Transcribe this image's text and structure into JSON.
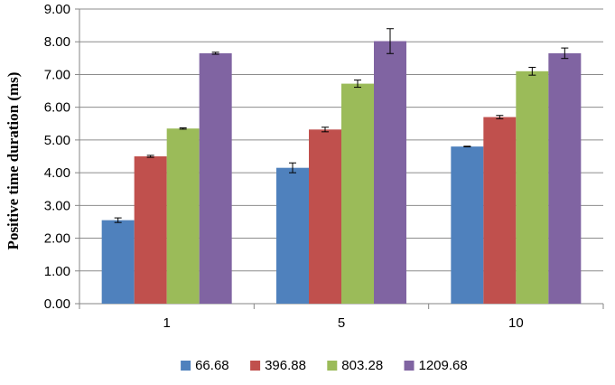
{
  "chart_data": {
    "type": "bar",
    "title": "",
    "xlabel": "",
    "ylabel": "Positive time duration (ms)",
    "ylim": [
      0,
      9
    ],
    "yticks": [
      "0.00",
      "1.00",
      "2.00",
      "3.00",
      "4.00",
      "5.00",
      "6.00",
      "7.00",
      "8.00",
      "9.00"
    ],
    "categories": [
      "1",
      "5",
      "10"
    ],
    "grid": true,
    "legend_position": "bottom",
    "series": [
      {
        "name": "66.68",
        "color": "#4F81BD",
        "values": [
          2.55,
          4.15,
          4.8
        ],
        "errors": [
          0.07,
          0.15,
          0.01
        ]
      },
      {
        "name": "396.88",
        "color": "#C0504D",
        "values": [
          4.5,
          5.32,
          5.7
        ],
        "errors": [
          0.03,
          0.07,
          0.05
        ]
      },
      {
        "name": "803.28",
        "color": "#9BBB59",
        "values": [
          5.35,
          6.72,
          7.1
        ],
        "errors": [
          0.02,
          0.11,
          0.12
        ]
      },
      {
        "name": "1209.68",
        "color": "#8064A2",
        "values": [
          7.65,
          8.02,
          7.65
        ],
        "errors": [
          0.03,
          0.38,
          0.16
        ]
      }
    ]
  }
}
